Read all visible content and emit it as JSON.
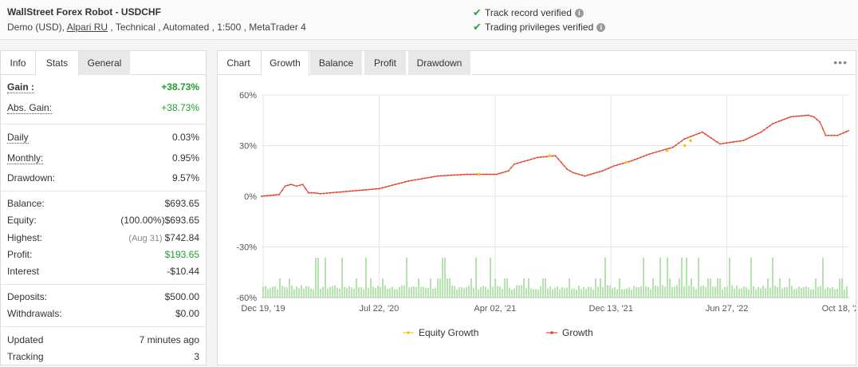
{
  "header": {
    "title": "WallStreet Forex Robot - USDCHF",
    "subtitle_prefix": "Demo (USD), ",
    "broker": "Alpari RU",
    "subtitle_suffix": " , Technical , Automated , 1:500 , MetaTrader 4",
    "verifications": [
      {
        "label": "Track record verified",
        "icon": "check-icon"
      },
      {
        "label": "Trading privileges verified",
        "icon": "check-icon"
      }
    ]
  },
  "left_tabs": [
    "Info",
    "Stats",
    "General"
  ],
  "left_active_tab": "Stats",
  "stats": {
    "gain": {
      "label": "Gain :",
      "value": "+38.73%"
    },
    "abs_gain": {
      "label": "Abs. Gain:",
      "value": "+38.73%"
    },
    "daily": {
      "label": "Daily",
      "value": "0.03%"
    },
    "monthly": {
      "label": "Monthly:",
      "value": "0.95%"
    },
    "drawdown": {
      "label": "Drawdown:",
      "value": "9.57%"
    },
    "balance": {
      "label": "Balance:",
      "value": "$693.65"
    },
    "equity": {
      "label": "Equity:",
      "note": "(100.00%)",
      "value": "$693.65"
    },
    "highest": {
      "label": "Highest:",
      "note": "(Aug 31)",
      "value": "$742.84"
    },
    "profit": {
      "label": "Profit:",
      "value": "$193.65"
    },
    "interest": {
      "label": "Interest",
      "value": "-$10.44"
    },
    "deposits": {
      "label": "Deposits:",
      "value": "$500.00"
    },
    "withdrawals": {
      "label": "Withdrawals:",
      "value": "$0.00"
    },
    "updated": {
      "label": "Updated",
      "value": "7 minutes ago"
    },
    "tracking": {
      "label": "Tracking",
      "value": "3"
    }
  },
  "chart_tabs": [
    "Chart",
    "Growth",
    "Balance",
    "Profit",
    "Drawdown"
  ],
  "chart_active_tab": "Growth",
  "colors": {
    "growth": "#e8412c",
    "equity": "#f5c518",
    "bars": "#b5e3ad",
    "positive": "#1fa02b"
  },
  "chart_data": {
    "type": "line",
    "y_ticks": [
      "60%",
      "30%",
      "0%",
      "-30%",
      "-60%"
    ],
    "ylim": [
      -60,
      60
    ],
    "x_ticks": [
      "Dec 19, '19",
      "Jul 22, '20",
      "Apr 02, '21",
      "Dec 13, '21",
      "Jun 27, '22",
      "Oct 18, '22"
    ],
    "legend": [
      "Equity Growth",
      "Growth"
    ],
    "grid": true,
    "series": [
      {
        "name": "Growth",
        "x": [
          0,
          0.03,
          0.04,
          0.05,
          0.06,
          0.07,
          0.08,
          0.09,
          0.1,
          0.15,
          0.2,
          0.25,
          0.3,
          0.35,
          0.4,
          0.42,
          0.43,
          0.47,
          0.5,
          0.52,
          0.53,
          0.55,
          0.58,
          0.6,
          0.63,
          0.66,
          0.7,
          0.72,
          0.75,
          0.78,
          0.82,
          0.85,
          0.87,
          0.9,
          0.93,
          0.94,
          0.95,
          0.96,
          0.97,
          0.98,
          1.0
        ],
        "y": [
          0,
          1,
          6,
          7,
          6,
          7,
          2,
          2,
          1.5,
          3,
          4.5,
          9,
          12,
          13,
          13,
          15,
          19,
          23,
          24,
          16,
          14,
          12,
          15,
          18,
          21,
          25,
          29,
          34,
          38,
          31,
          33,
          38,
          43,
          47,
          48,
          47,
          44,
          36,
          36,
          36,
          39
        ]
      },
      {
        "name": "Equity Growth",
        "x": [
          0.37,
          0.49,
          0.62,
          0.69,
          0.72,
          0.73
        ],
        "y": [
          13,
          24,
          20,
          27,
          30,
          33
        ]
      }
    ],
    "volume_bars": "trade volume histogram along bottom of plot"
  }
}
